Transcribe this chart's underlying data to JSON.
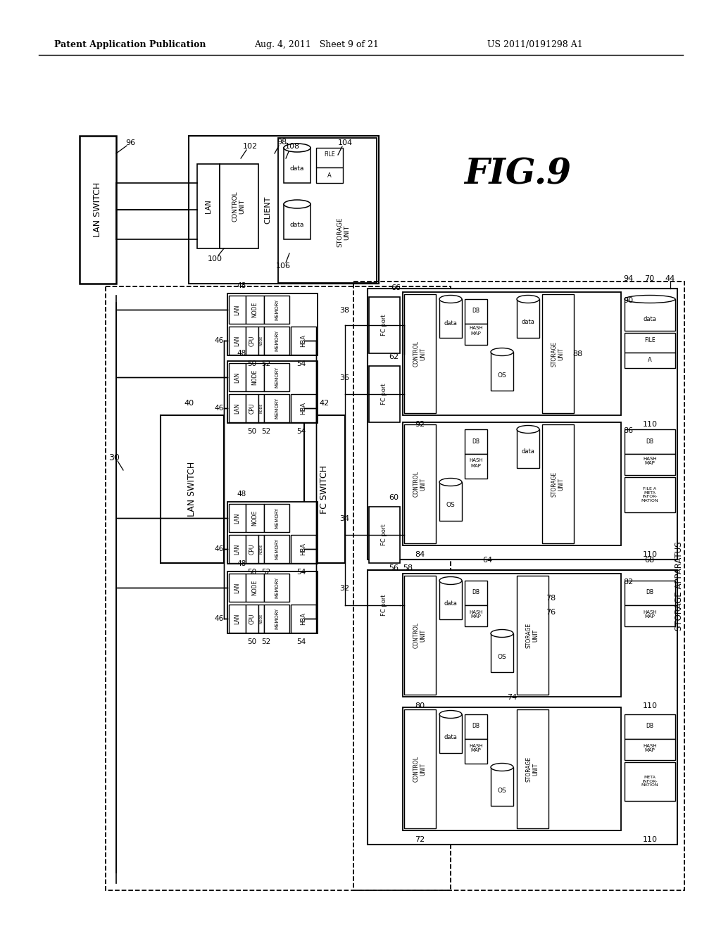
{
  "bg_color": "#ffffff",
  "header_left": "Patent Application Publication",
  "header_mid": "Aug. 4, 2011   Sheet 9 of 21",
  "header_right": "US 2011/0191298 A1",
  "fig_label": "FIG.9"
}
